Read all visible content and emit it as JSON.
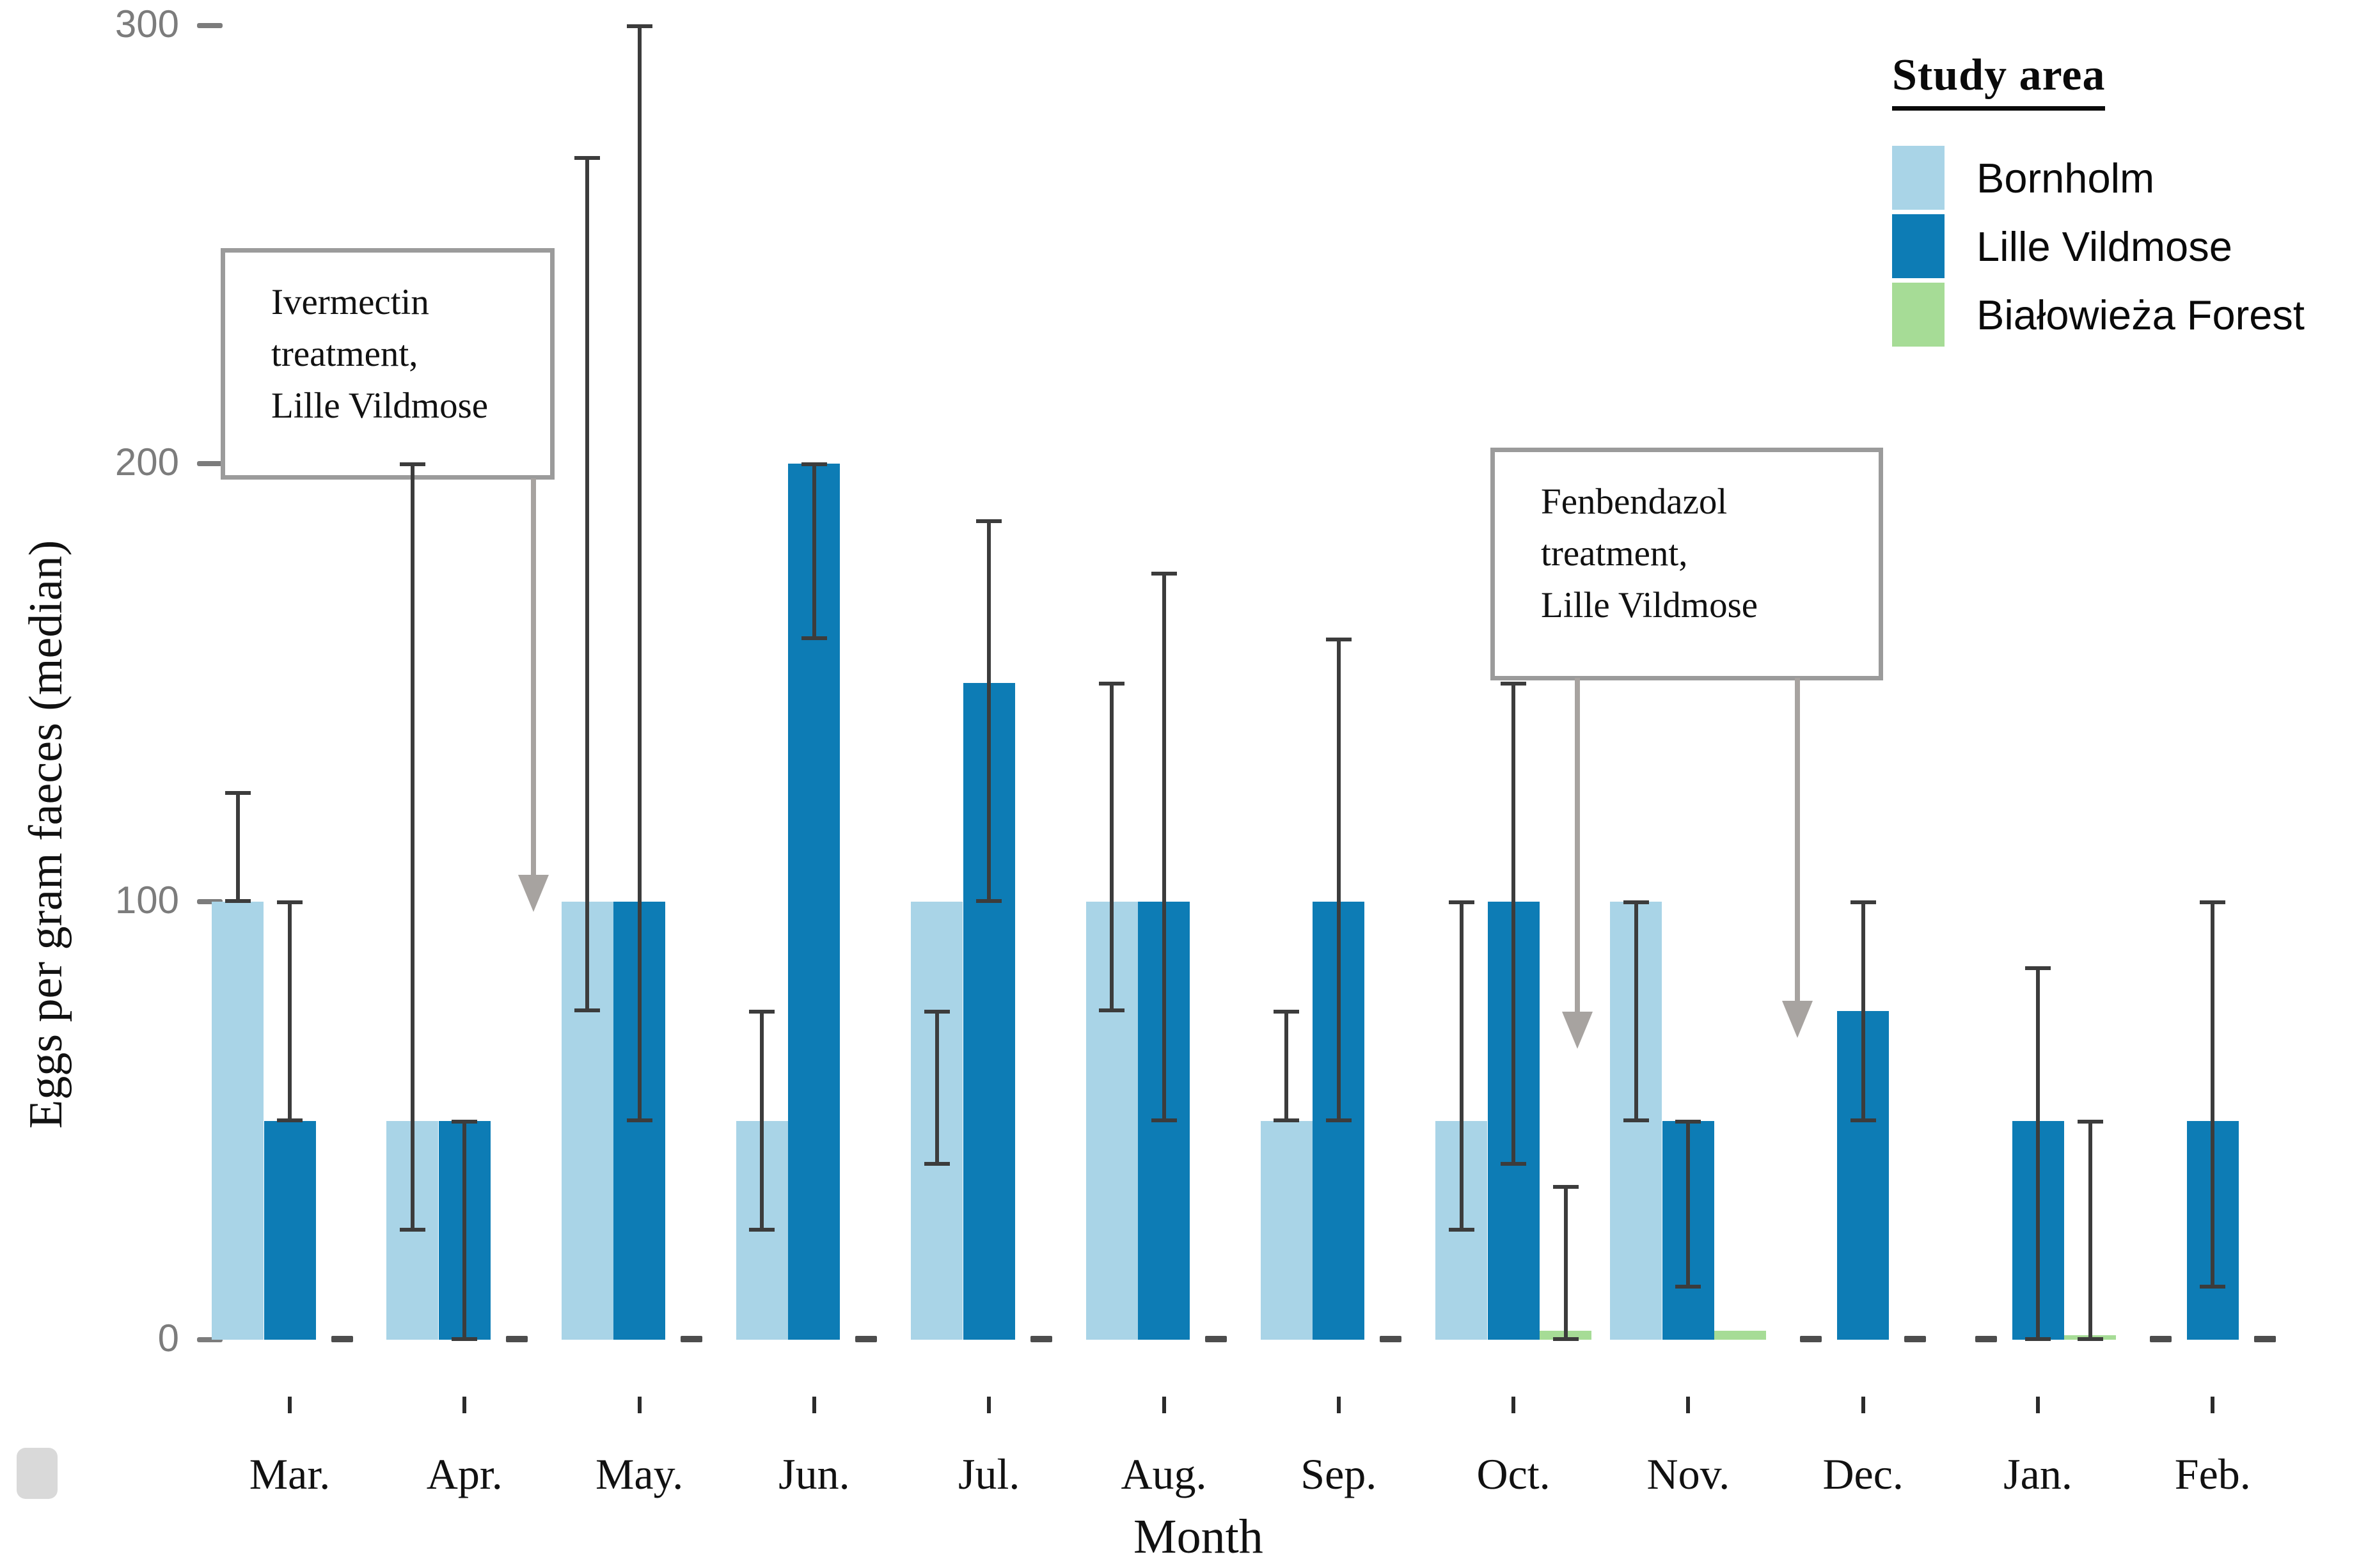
{
  "chart_data": {
    "type": "bar",
    "title": "",
    "xlabel": "Month",
    "ylabel": "Eggs per gram faeces (median)",
    "ylim": [
      0,
      300
    ],
    "yticks": [
      0,
      100,
      200,
      300
    ],
    "grid": "off",
    "legend_position": "top-right",
    "legend_title": "Study area",
    "categories": [
      "Mar.",
      "Apr.",
      "May.",
      "Jun.",
      "Jul.",
      "Aug.",
      "Sep.",
      "Oct.",
      "Nov.",
      "Dec.",
      "Jan.",
      "Feb."
    ],
    "series": [
      {
        "name": "Bornholm",
        "color": "#a9d4e7",
        "values": [
          100,
          50,
          100,
          50,
          100,
          100,
          50,
          50,
          100,
          null,
          null,
          null
        ],
        "error_low": [
          100,
          25,
          75,
          25,
          40,
          75,
          50,
          25,
          50,
          null,
          null,
          null
        ],
        "error_high": [
          125,
          200,
          270,
          75,
          75,
          150,
          75,
          100,
          100,
          null,
          null,
          null
        ]
      },
      {
        "name": "Lille Vildmose",
        "color": "#0d7cb5",
        "values": [
          50,
          50,
          100,
          200,
          150,
          100,
          100,
          100,
          50,
          75,
          50,
          50
        ],
        "error_low": [
          50,
          0,
          50,
          160,
          100,
          50,
          50,
          40,
          12,
          50,
          0,
          12
        ],
        "error_high": [
          100,
          50,
          300,
          200,
          187,
          175,
          160,
          150,
          50,
          100,
          85,
          100
        ]
      },
      {
        "name": "Białowieża Forest",
        "color": "#a6dc96",
        "values": [
          null,
          null,
          null,
          null,
          null,
          null,
          null,
          2,
          2,
          null,
          1,
          null
        ],
        "error_low": [
          null,
          null,
          null,
          null,
          null,
          null,
          null,
          0,
          null,
          null,
          0,
          null
        ],
        "error_high": [
          null,
          null,
          null,
          null,
          null,
          null,
          null,
          35,
          null,
          null,
          50,
          null
        ]
      }
    ],
    "missing_value_marker": "dash at zero",
    "annotations": [
      {
        "lines": [
          "Ivermectin",
          "treatment,",
          "Lille Vildmose"
        ],
        "arrow_points_to_value": 95,
        "arrow_between": "Apr. and May."
      },
      {
        "lines": [
          "Fenbendazol",
          "treatment,",
          "Lille Vildmose"
        ],
        "arrow_points_to_value": 65,
        "arrows_between": "Oct./Nov. and Nov./Dec."
      }
    ]
  },
  "legend": {
    "title": "Study area",
    "items": [
      {
        "label": "Bornholm",
        "color": "#a9d4e7"
      },
      {
        "label": "Lille Vildmose",
        "color": "#0d7cb5"
      },
      {
        "label": "Białowieża Forest",
        "color": "#a6dc96"
      }
    ]
  },
  "axes": {
    "y_title": "Eggs per gram faeces (median)",
    "x_title": "Month",
    "y_tick_labels": [
      "0",
      "100",
      "200",
      "300"
    ]
  },
  "callout1": {
    "line1": "Ivermectin",
    "line2": "treatment,",
    "line3": "Lille Vildmose"
  },
  "callout2": {
    "line1": "Fenbendazol",
    "line2": "treatment,",
    "line3": "Lille Vildmose"
  }
}
